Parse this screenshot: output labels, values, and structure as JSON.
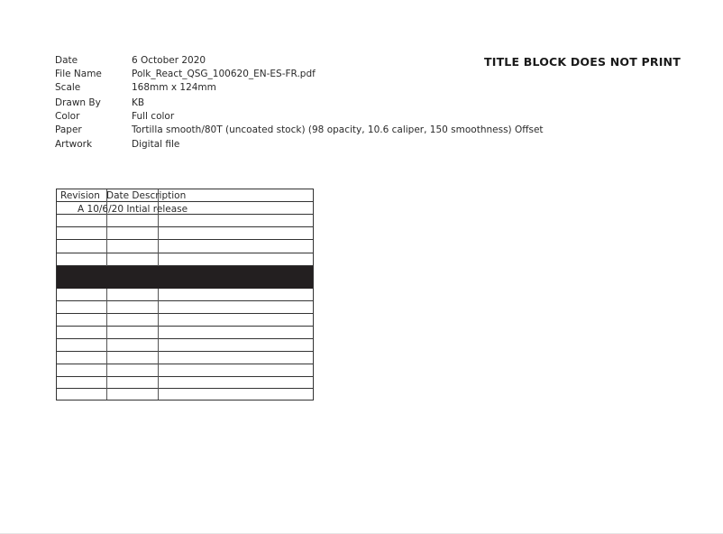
{
  "title_block": {
    "heading": "TITLE BLOCK DOES NOT PRINT",
    "fields": [
      {
        "label": "Date",
        "value": "6 October 2020"
      },
      {
        "label": "File Name",
        "value": "Polk_React_QSG_100620_EN-ES-FR.pdf"
      },
      {
        "label": "Scale",
        "value": "168mm x 124mm"
      },
      {
        "label": "Drawn By",
        "value": "KB"
      },
      {
        "label": "Color",
        "value": "Full color"
      },
      {
        "label": "Paper",
        "value": "Tortilla smooth/80T (uncoated stock) (98 opacity, 10.6 caliper, 150 smoothness) Offset"
      },
      {
        "label": "Artwork",
        "value": "Digital file"
      }
    ]
  },
  "revision_table": {
    "headers": {
      "revision": "Revision",
      "date_description": "Date Description"
    },
    "rows": [
      {
        "text": "A 10/6/20 Intial release"
      }
    ]
  }
}
